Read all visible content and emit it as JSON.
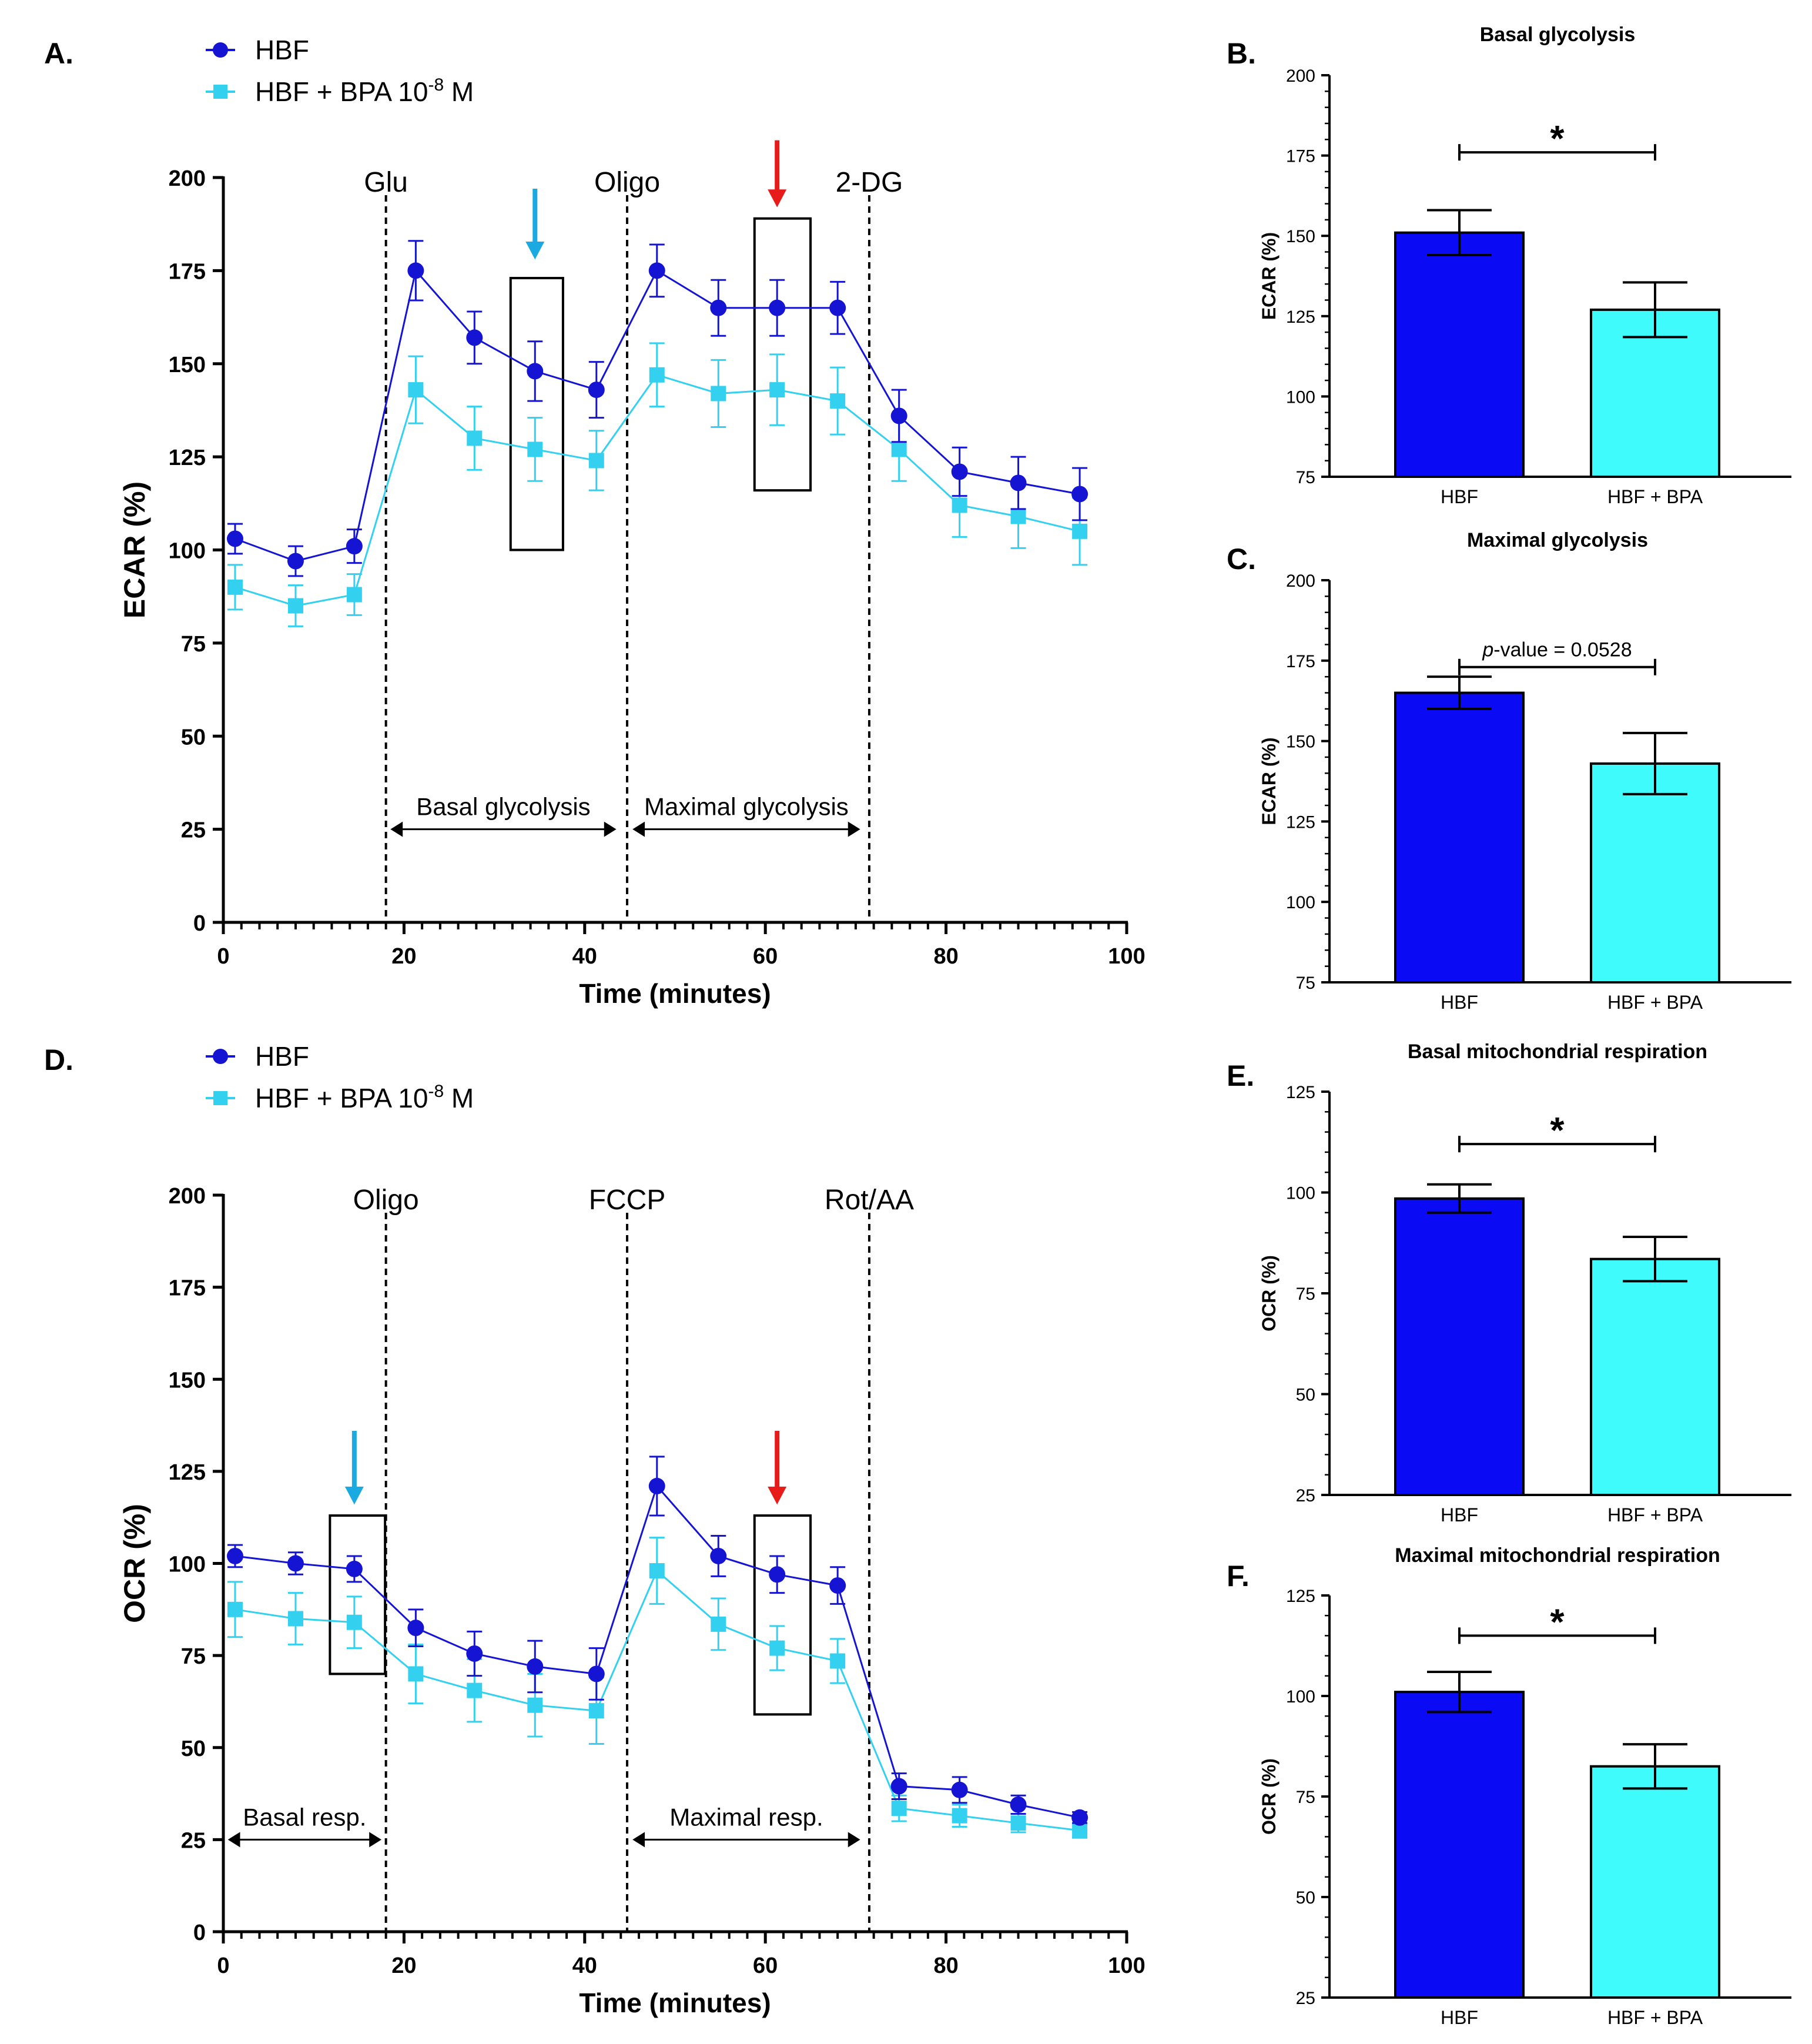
{
  "colors": {
    "hbf": "#1414d2",
    "bpa": "#33d1ef",
    "bar_hbf": "#0a0af5",
    "bar_bpa": "#40fbfb",
    "arrow_cyan": "#1aa9e1",
    "arrow_red": "#e81b1b"
  },
  "chart_data": [
    {
      "id": "A",
      "panel_label": "A.",
      "type": "line",
      "xlabel": "Time (minutes)",
      "ylabel": "ECAR (%)",
      "xlim": [
        0,
        100
      ],
      "ylim": [
        0,
        200
      ],
      "xticks": [
        0,
        20,
        40,
        60,
        80,
        100
      ],
      "yticks": [
        0,
        25,
        50,
        75,
        100,
        125,
        150,
        175,
        200
      ],
      "legend": {
        "placement": "top-left",
        "entries": [
          {
            "label": "HBF"
          },
          {
            "label": "HBF + BPA 10",
            "sup": "-8",
            "suffix": " M"
          }
        ]
      },
      "x": [
        1.3,
        8,
        14.5,
        21.3,
        27.8,
        34.5,
        41.3,
        48,
        54.8,
        61.3,
        68,
        74.8,
        81.5,
        88,
        94.8
      ],
      "series": [
        {
          "name": "HBF",
          "color_key": "hbf",
          "marker": "circle",
          "values": [
            103,
            97,
            101,
            175,
            157,
            148,
            143,
            175,
            165,
            165,
            165,
            136,
            121,
            118,
            115
          ],
          "errors": [
            4,
            4,
            4.5,
            8,
            7,
            8,
            7.5,
            7,
            7.5,
            7.5,
            7,
            7,
            6.5,
            7,
            7
          ]
        },
        {
          "name": "HBF + BPA 10-8 M",
          "color_key": "bpa",
          "marker": "square",
          "values": [
            90,
            85,
            88,
            143,
            130,
            127,
            124,
            147,
            142,
            143,
            140,
            127,
            112,
            109,
            105
          ],
          "errors": [
            6,
            5.5,
            5.5,
            9,
            8.5,
            8.5,
            8,
            8.5,
            9,
            9.5,
            9,
            8.5,
            8.5,
            8.5,
            9
          ]
        }
      ],
      "vlines": [
        {
          "x": 18,
          "label": "Glu"
        },
        {
          "x": 44.7,
          "label": "Oligo"
        },
        {
          "x": 71.5,
          "label": "2-DG"
        }
      ],
      "boxes": [
        {
          "x0": 31.8,
          "x1": 37.6,
          "y0": 100,
          "y1": 173
        },
        {
          "x0": 58.8,
          "x1": 65,
          "y0": 116,
          "y1": 189
        }
      ],
      "arrows": [
        {
          "x": 34.5,
          "y_from": 197,
          "y_to": 178,
          "color_key": "arrow_cyan"
        },
        {
          "x": 61.3,
          "y_from": 210,
          "y_to": 192,
          "color_key": "arrow_red"
        }
      ],
      "ranges": [
        {
          "x0": 18.5,
          "x1": 43.5,
          "y": 25,
          "label": "Basal glycolysis"
        },
        {
          "x0": 45.3,
          "x1": 70.5,
          "y": 25,
          "label": "Maximal glycolysis"
        }
      ]
    },
    {
      "id": "B",
      "panel_label": "B.",
      "type": "bar",
      "title": "Basal glycolysis",
      "ylabel": "ECAR (%)",
      "ylim": [
        75,
        200
      ],
      "yticks": [
        75,
        100,
        125,
        150,
        175,
        200
      ],
      "categories": [
        "HBF",
        "HBF + BPA"
      ],
      "values": [
        151,
        127
      ],
      "errors": [
        7,
        8.5
      ],
      "bar_color_keys": [
        "bar_hbf",
        "bar_bpa"
      ],
      "significance": {
        "label": "*",
        "y": 176,
        "italic_prefix": "",
        "rest": ""
      }
    },
    {
      "id": "C",
      "panel_label": "C.",
      "type": "bar",
      "title": "Maximal glycolysis",
      "ylabel": "ECAR (%)",
      "ylim": [
        75,
        200
      ],
      "yticks": [
        75,
        100,
        125,
        150,
        175,
        200
      ],
      "categories": [
        "HBF",
        "HBF + BPA"
      ],
      "values": [
        165,
        143
      ],
      "errors": [
        5,
        9.5
      ],
      "bar_color_keys": [
        "bar_hbf",
        "bar_bpa"
      ],
      "significance": {
        "label": "",
        "y": 173,
        "italic_prefix": "p",
        "rest": "-value = 0.0528"
      }
    },
    {
      "id": "D",
      "panel_label": "D.",
      "type": "line",
      "xlabel": "Time (minutes)",
      "ylabel": "OCR (%)",
      "xlim": [
        0,
        100
      ],
      "ylim": [
        0,
        200
      ],
      "xticks": [
        0,
        20,
        40,
        60,
        80,
        100
      ],
      "yticks": [
        0,
        25,
        50,
        75,
        100,
        125,
        150,
        175,
        200
      ],
      "legend": {
        "placement": "top-left",
        "entries": [
          {
            "label": "HBF"
          },
          {
            "label": "HBF + BPA 10",
            "sup": "-8",
            "suffix": " M"
          }
        ]
      },
      "x": [
        1.3,
        8,
        14.5,
        21.3,
        27.8,
        34.5,
        41.3,
        48,
        54.8,
        61.3,
        68,
        74.8,
        81.5,
        88,
        94.8
      ],
      "series": [
        {
          "name": "HBF",
          "color_key": "hbf",
          "marker": "circle",
          "values": [
            102,
            100,
            98.5,
            82.5,
            75.5,
            72,
            70,
            121,
            102,
            97,
            94,
            39.5,
            38.5,
            34.5,
            31
          ],
          "errors": [
            3,
            3,
            3.5,
            5,
            6,
            7,
            7,
            8,
            5.5,
            5,
            5,
            3.5,
            3.5,
            2.5,
            1.5
          ]
        },
        {
          "name": "HBF + BPA 10-8 M",
          "color_key": "bpa",
          "marker": "square",
          "values": [
            87.5,
            85,
            84,
            70,
            65.5,
            61.5,
            60,
            98,
            83.5,
            77,
            73.5,
            33.5,
            31.5,
            29.5,
            27.5
          ],
          "errors": [
            7.5,
            7,
            7,
            8,
            8.5,
            8.5,
            9,
            9,
            7,
            6,
            6,
            3.5,
            3,
            2.5,
            2
          ]
        }
      ],
      "vlines": [
        {
          "x": 18,
          "label": "Oligo"
        },
        {
          "x": 44.7,
          "label": "FCCP"
        },
        {
          "x": 71.5,
          "label": "Rot/AA"
        }
      ],
      "boxes": [
        {
          "x0": 11.8,
          "x1": 17.9,
          "y0": 70,
          "y1": 113
        },
        {
          "x0": 58.8,
          "x1": 65,
          "y0": 59,
          "y1": 113
        }
      ],
      "arrows": [
        {
          "x": 14.5,
          "y_from": 136,
          "y_to": 116,
          "color_key": "arrow_cyan"
        },
        {
          "x": 61.3,
          "y_from": 136,
          "y_to": 116,
          "color_key": "arrow_red"
        }
      ],
      "ranges": [
        {
          "x0": 0.5,
          "x1": 17.5,
          "y": 25,
          "label": "Basal resp."
        },
        {
          "x0": 45.3,
          "x1": 70.5,
          "y": 25,
          "label": "Maximal resp."
        }
      ]
    },
    {
      "id": "E",
      "panel_label": "E.",
      "type": "bar",
      "title": "Basal mitochondrial respiration",
      "ylabel": "OCR (%)",
      "ylim": [
        25,
        125
      ],
      "yticks": [
        25,
        50,
        75,
        100,
        125
      ],
      "categories": [
        "HBF",
        "HBF + BPA"
      ],
      "values": [
        98.5,
        83.5
      ],
      "errors": [
        3.5,
        5.5
      ],
      "bar_color_keys": [
        "bar_hbf",
        "bar_bpa"
      ],
      "significance": {
        "label": "*",
        "y": 112,
        "italic_prefix": "",
        "rest": ""
      }
    },
    {
      "id": "F",
      "panel_label": "F.",
      "type": "bar",
      "title": "Maximal mitochondrial respiration",
      "ylabel": "OCR (%)",
      "ylim": [
        25,
        125
      ],
      "yticks": [
        25,
        50,
        75,
        100,
        125
      ],
      "categories": [
        "HBF",
        "HBF + BPA"
      ],
      "values": [
        101,
        82.5
      ],
      "errors": [
        5,
        5.5
      ],
      "bar_color_keys": [
        "bar_hbf",
        "bar_bpa"
      ],
      "significance": {
        "label": "*",
        "y": 115,
        "italic_prefix": "",
        "rest": ""
      }
    }
  ]
}
